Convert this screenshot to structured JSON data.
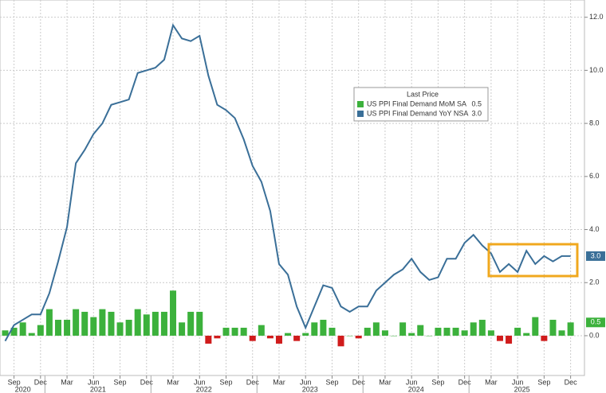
{
  "chart_data": {
    "type": "bar_line",
    "categories": [
      null,
      "Sep",
      null,
      null,
      "Dec",
      null,
      null,
      "Mar",
      null,
      null,
      "Jun",
      null,
      null,
      "Sep",
      null,
      null,
      "Dec",
      null,
      null,
      "Mar",
      null,
      null,
      "Jun",
      null,
      null,
      "Sep",
      null,
      null,
      "Dec",
      null,
      null,
      "Mar",
      null,
      null,
      "Jun",
      null,
      null,
      "Sep",
      null,
      null,
      "Dec",
      null,
      null,
      "Mar",
      null,
      null,
      "Jun",
      null,
      null,
      "Sep",
      null,
      null,
      "Dec",
      null,
      null,
      "Mar",
      null,
      null,
      "Jun",
      null,
      null,
      "Sep",
      null,
      null,
      "Dec"
    ],
    "years": [
      "2020",
      "2021",
      "2022",
      "2023",
      "2024",
      "2025"
    ],
    "legend_title": "Last Price",
    "series": [
      {
        "name": "US PPI Final Demand MoM SA",
        "type": "bar",
        "color": "#3cb13c",
        "negative_color": "#d01c1c",
        "last_label": "0.5",
        "values": [
          0.2,
          0.3,
          0.5,
          0.1,
          0.4,
          1.0,
          0.6,
          0.6,
          1.0,
          0.9,
          0.7,
          1.0,
          0.9,
          0.5,
          0.6,
          1.0,
          0.8,
          0.9,
          0.9,
          1.7,
          0.5,
          0.9,
          0.9,
          -0.3,
          -0.1,
          0.3,
          0.3,
          0.3,
          -0.2,
          0.4,
          -0.1,
          -0.3,
          0.1,
          -0.2,
          0.1,
          0.5,
          0.6,
          0.3,
          -0.4,
          0.0,
          -0.1,
          0.3,
          0.5,
          0.2,
          0.0,
          0.5,
          0.1,
          0.4,
          0.0,
          0.3,
          0.3,
          0.3,
          0.2,
          0.5,
          0.6,
          0.2,
          -0.2,
          -0.3,
          0.3,
          0.1,
          0.7,
          -0.2,
          0.6,
          0.2,
          0.5
        ]
      },
      {
        "name": "US PPI Final Demand YoY NSA",
        "type": "line",
        "color": "#3a6f98",
        "last_label": "3.0",
        "values": [
          -0.2,
          0.4,
          0.6,
          0.8,
          0.8,
          1.6,
          2.8,
          4.1,
          6.5,
          7.0,
          7.6,
          8.0,
          8.7,
          8.8,
          8.9,
          9.9,
          10.0,
          10.1,
          10.4,
          11.7,
          11.2,
          11.1,
          11.3,
          9.8,
          8.7,
          8.5,
          8.2,
          7.4,
          6.4,
          5.8,
          4.7,
          2.7,
          2.3,
          1.1,
          0.3,
          1.1,
          1.9,
          1.8,
          1.1,
          0.9,
          1.1,
          1.1,
          1.7,
          2.0,
          2.3,
          2.5,
          2.9,
          2.4,
          2.1,
          2.2,
          2.9,
          2.9,
          3.5,
          3.8,
          3.4,
          3.1,
          2.4,
          2.7,
          2.4,
          3.2,
          2.7,
          3.0,
          2.8,
          3.0,
          3.0
        ]
      }
    ],
    "ylim": [
      -1.5,
      12.65
    ],
    "yticks": [
      {
        "value": 0,
        "label": "0.0"
      },
      {
        "value": 2,
        "label": "2.0"
      },
      {
        "value": 4,
        "label": "4.0"
      },
      {
        "value": 6,
        "label": "6.0"
      },
      {
        "value": 8,
        "label": "8.0"
      },
      {
        "value": 10,
        "label": "10.0"
      },
      {
        "value": 12,
        "label": "12.0"
      }
    ],
    "grid": true
  }
}
